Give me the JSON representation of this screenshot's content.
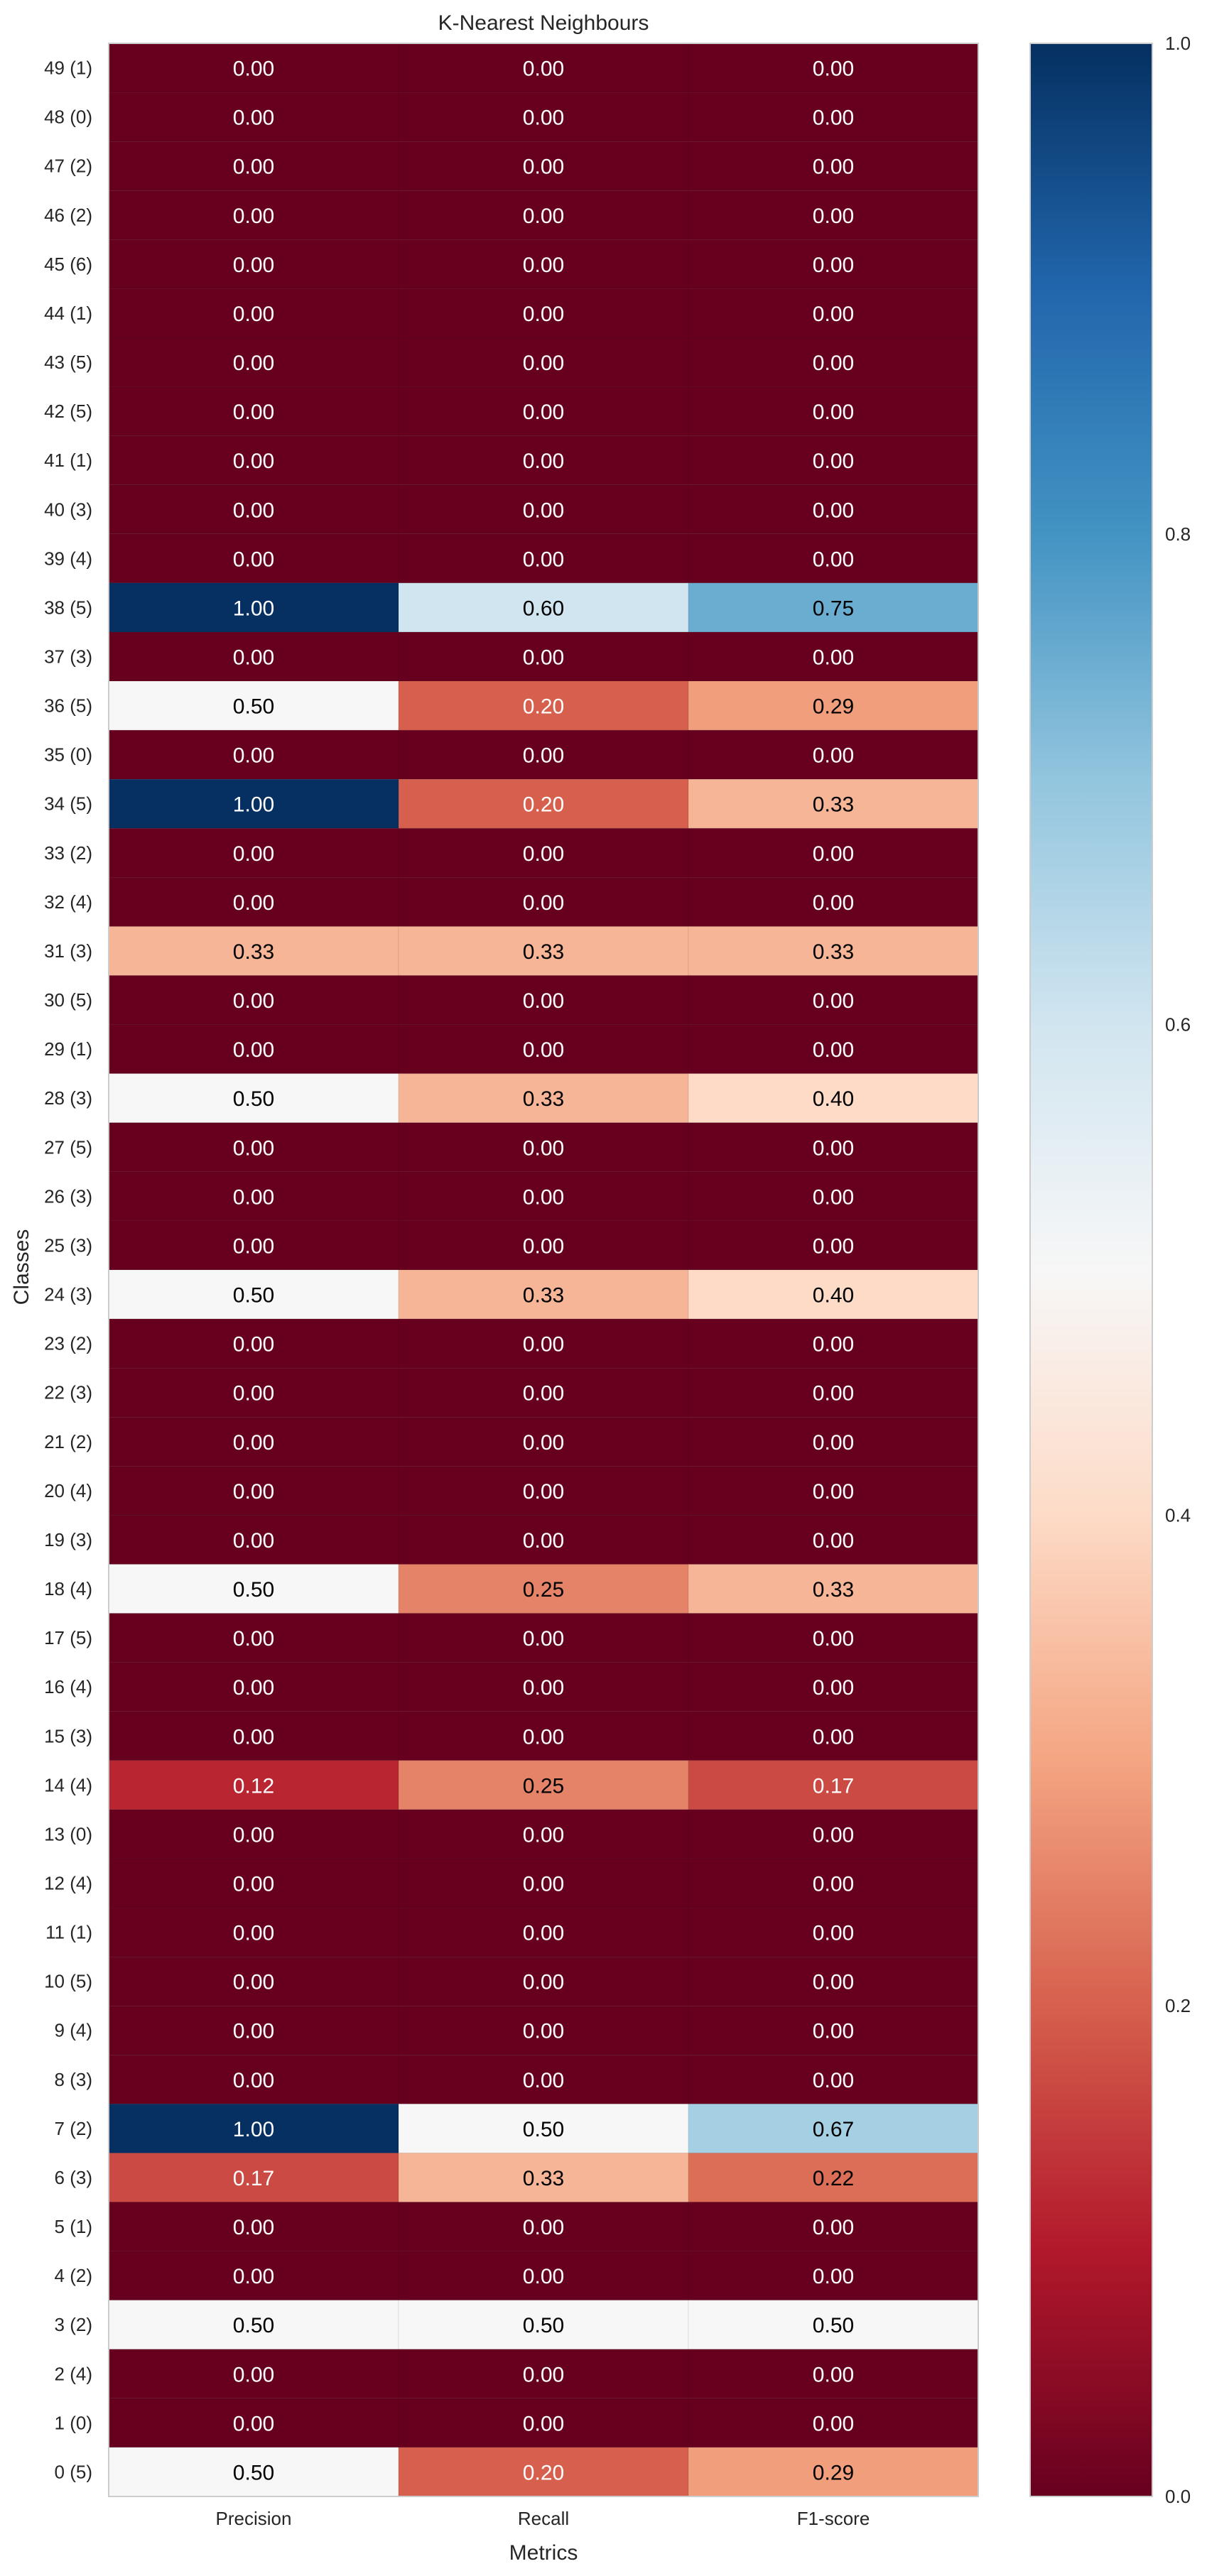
{
  "chart_data": {
    "type": "heatmap",
    "title": "K-Nearest Neighbours",
    "xlabel": "Metrics",
    "ylabel": "Classes",
    "columns": [
      "Precision",
      "Recall",
      "F1-score"
    ],
    "rows": [
      {
        "label": "49 (1)",
        "values": [
          0.0,
          0.0,
          0.0
        ]
      },
      {
        "label": "48 (0)",
        "values": [
          0.0,
          0.0,
          0.0
        ]
      },
      {
        "label": "47 (2)",
        "values": [
          0.0,
          0.0,
          0.0
        ]
      },
      {
        "label": "46 (2)",
        "values": [
          0.0,
          0.0,
          0.0
        ]
      },
      {
        "label": "45 (6)",
        "values": [
          0.0,
          0.0,
          0.0
        ]
      },
      {
        "label": "44 (1)",
        "values": [
          0.0,
          0.0,
          0.0
        ]
      },
      {
        "label": "43 (5)",
        "values": [
          0.0,
          0.0,
          0.0
        ]
      },
      {
        "label": "42 (5)",
        "values": [
          0.0,
          0.0,
          0.0
        ]
      },
      {
        "label": "41 (1)",
        "values": [
          0.0,
          0.0,
          0.0
        ]
      },
      {
        "label": "40 (3)",
        "values": [
          0.0,
          0.0,
          0.0
        ]
      },
      {
        "label": "39 (4)",
        "values": [
          0.0,
          0.0,
          0.0
        ]
      },
      {
        "label": "38 (5)",
        "values": [
          1.0,
          0.6,
          0.75
        ]
      },
      {
        "label": "37 (3)",
        "values": [
          0.0,
          0.0,
          0.0
        ]
      },
      {
        "label": "36 (5)",
        "values": [
          0.5,
          0.2,
          0.29
        ]
      },
      {
        "label": "35 (0)",
        "values": [
          0.0,
          0.0,
          0.0
        ]
      },
      {
        "label": "34 (5)",
        "values": [
          1.0,
          0.2,
          0.33
        ]
      },
      {
        "label": "33 (2)",
        "values": [
          0.0,
          0.0,
          0.0
        ]
      },
      {
        "label": "32 (4)",
        "values": [
          0.0,
          0.0,
          0.0
        ]
      },
      {
        "label": "31 (3)",
        "values": [
          0.33,
          0.33,
          0.33
        ]
      },
      {
        "label": "30 (5)",
        "values": [
          0.0,
          0.0,
          0.0
        ]
      },
      {
        "label": "29 (1)",
        "values": [
          0.0,
          0.0,
          0.0
        ]
      },
      {
        "label": "28 (3)",
        "values": [
          0.5,
          0.33,
          0.4
        ]
      },
      {
        "label": "27 (5)",
        "values": [
          0.0,
          0.0,
          0.0
        ]
      },
      {
        "label": "26 (3)",
        "values": [
          0.0,
          0.0,
          0.0
        ]
      },
      {
        "label": "25 (3)",
        "values": [
          0.0,
          0.0,
          0.0
        ]
      },
      {
        "label": "24 (3)",
        "values": [
          0.5,
          0.33,
          0.4
        ]
      },
      {
        "label": "23 (2)",
        "values": [
          0.0,
          0.0,
          0.0
        ]
      },
      {
        "label": "22 (3)",
        "values": [
          0.0,
          0.0,
          0.0
        ]
      },
      {
        "label": "21 (2)",
        "values": [
          0.0,
          0.0,
          0.0
        ]
      },
      {
        "label": "20 (4)",
        "values": [
          0.0,
          0.0,
          0.0
        ]
      },
      {
        "label": "19 (3)",
        "values": [
          0.0,
          0.0,
          0.0
        ]
      },
      {
        "label": "18 (4)",
        "values": [
          0.5,
          0.25,
          0.33
        ]
      },
      {
        "label": "17 (5)",
        "values": [
          0.0,
          0.0,
          0.0
        ]
      },
      {
        "label": "16 (4)",
        "values": [
          0.0,
          0.0,
          0.0
        ]
      },
      {
        "label": "15 (3)",
        "values": [
          0.0,
          0.0,
          0.0
        ]
      },
      {
        "label": "14 (4)",
        "values": [
          0.12,
          0.25,
          0.17
        ]
      },
      {
        "label": "13 (0)",
        "values": [
          0.0,
          0.0,
          0.0
        ]
      },
      {
        "label": "12 (4)",
        "values": [
          0.0,
          0.0,
          0.0
        ]
      },
      {
        "label": "11 (1)",
        "values": [
          0.0,
          0.0,
          0.0
        ]
      },
      {
        "label": "10 (5)",
        "values": [
          0.0,
          0.0,
          0.0
        ]
      },
      {
        "label": "9 (4)",
        "values": [
          0.0,
          0.0,
          0.0
        ]
      },
      {
        "label": "8 (3)",
        "values": [
          0.0,
          0.0,
          0.0
        ]
      },
      {
        "label": "7 (2)",
        "values": [
          1.0,
          0.5,
          0.67
        ]
      },
      {
        "label": "6 (3)",
        "values": [
          0.17,
          0.33,
          0.22
        ]
      },
      {
        "label": "5 (1)",
        "values": [
          0.0,
          0.0,
          0.0
        ]
      },
      {
        "label": "4 (2)",
        "values": [
          0.0,
          0.0,
          0.0
        ]
      },
      {
        "label": "3 (2)",
        "values": [
          0.5,
          0.5,
          0.5
        ]
      },
      {
        "label": "2 (4)",
        "values": [
          0.0,
          0.0,
          0.0
        ]
      },
      {
        "label": "1 (0)",
        "values": [
          0.0,
          0.0,
          0.0
        ]
      },
      {
        "label": "0 (5)",
        "values": [
          0.5,
          0.2,
          0.29
        ]
      }
    ],
    "value_range": [
      0.0,
      1.0
    ],
    "colormap": "RdBu",
    "colorbar": {
      "position": "right",
      "ticks": [
        "0.0",
        "0.2",
        "0.4",
        "0.6",
        "0.8",
        "1.0"
      ]
    },
    "grid": false
  }
}
